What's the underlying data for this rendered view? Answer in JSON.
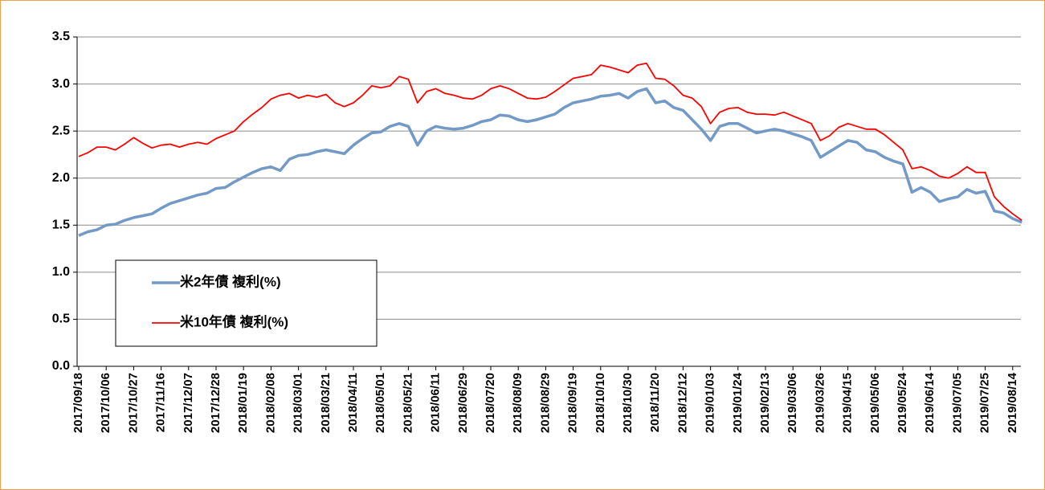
{
  "chart_data": {
    "type": "line",
    "categories": [
      "2017/09/18",
      null,
      null,
      "2017/10/06",
      null,
      null,
      "2017/10/27",
      null,
      null,
      "2017/11/16",
      null,
      null,
      "2017/12/07",
      null,
      null,
      "2017/12/28",
      null,
      null,
      "2018/01/19",
      null,
      null,
      "2018/02/08",
      null,
      null,
      "2018/03/01",
      null,
      null,
      "2018/03/21",
      null,
      null,
      "2018/04/11",
      null,
      null,
      "2018/05/01",
      null,
      null,
      "2018/05/21",
      null,
      null,
      "2018/06/11",
      null,
      null,
      "2018/06/29",
      null,
      null,
      "2018/07/20",
      null,
      null,
      "2018/08/09",
      null,
      null,
      "2018/08/29",
      null,
      null,
      "2018/09/19",
      null,
      null,
      "2018/10/10",
      null,
      null,
      "2018/10/30",
      null,
      null,
      "2018/11/20",
      null,
      null,
      "2018/12/12",
      null,
      null,
      "2019/01/03",
      null,
      null,
      "2019/01/24",
      null,
      null,
      "2019/02/13",
      null,
      null,
      "2019/03/06",
      null,
      null,
      "2019/03/26",
      null,
      null,
      "2019/04/15",
      null,
      null,
      "2019/05/06",
      null,
      null,
      "2019/05/24",
      null,
      null,
      "2019/06/14",
      null,
      null,
      "2019/07/05",
      null,
      null,
      "2019/07/25",
      null,
      null,
      "2019/08/14",
      null
    ],
    "series": [
      {
        "name": "米2年債 複利(%)",
        "color": "#7399c6",
        "width": 3.5,
        "values": [
          1.39,
          1.43,
          1.45,
          1.5,
          1.51,
          1.55,
          1.58,
          1.6,
          1.62,
          1.68,
          1.73,
          1.76,
          1.79,
          1.82,
          1.84,
          1.89,
          1.9,
          1.96,
          2.01,
          2.06,
          2.1,
          2.12,
          2.08,
          2.2,
          2.24,
          2.25,
          2.28,
          2.3,
          2.28,
          2.26,
          2.35,
          2.42,
          2.48,
          2.49,
          2.55,
          2.58,
          2.55,
          2.35,
          2.5,
          2.55,
          2.53,
          2.52,
          2.53,
          2.56,
          2.6,
          2.62,
          2.67,
          2.66,
          2.62,
          2.6,
          2.62,
          2.65,
          2.68,
          2.75,
          2.8,
          2.82,
          2.84,
          2.87,
          2.88,
          2.9,
          2.85,
          2.92,
          2.95,
          2.8,
          2.82,
          2.75,
          2.72,
          2.62,
          2.52,
          2.4,
          2.55,
          2.58,
          2.58,
          2.53,
          2.48,
          2.5,
          2.52,
          2.5,
          2.47,
          2.44,
          2.4,
          2.22,
          2.28,
          2.34,
          2.4,
          2.38,
          2.3,
          2.28,
          2.22,
          2.18,
          2.15,
          1.85,
          1.9,
          1.85,
          1.75,
          1.78,
          1.8,
          1.88,
          1.84,
          1.86,
          1.65,
          1.63,
          1.57,
          1.53
        ]
      },
      {
        "name": "米10年債 複利(%)",
        "color": "#ff0000",
        "width": 1.8,
        "values": [
          2.23,
          2.27,
          2.33,
          2.33,
          2.3,
          2.36,
          2.43,
          2.37,
          2.32,
          2.35,
          2.36,
          2.33,
          2.36,
          2.38,
          2.36,
          2.42,
          2.46,
          2.5,
          2.6,
          2.68,
          2.75,
          2.84,
          2.88,
          2.9,
          2.85,
          2.88,
          2.86,
          2.89,
          2.8,
          2.76,
          2.8,
          2.88,
          2.98,
          2.96,
          2.98,
          3.08,
          3.05,
          2.8,
          2.92,
          2.95,
          2.9,
          2.88,
          2.85,
          2.84,
          2.88,
          2.95,
          2.98,
          2.95,
          2.9,
          2.85,
          2.84,
          2.86,
          2.92,
          2.99,
          3.06,
          3.08,
          3.1,
          3.2,
          3.18,
          3.15,
          3.12,
          3.2,
          3.22,
          3.06,
          3.05,
          2.98,
          2.88,
          2.85,
          2.76,
          2.58,
          2.7,
          2.74,
          2.75,
          2.7,
          2.68,
          2.68,
          2.67,
          2.7,
          2.66,
          2.62,
          2.58,
          2.4,
          2.45,
          2.54,
          2.58,
          2.55,
          2.52,
          2.52,
          2.46,
          2.38,
          2.3,
          2.1,
          2.12,
          2.08,
          2.02,
          2.0,
          2.05,
          2.12,
          2.06,
          2.06,
          1.8,
          1.7,
          1.62,
          1.55
        ]
      }
    ],
    "ylim": [
      0,
      3.5
    ],
    "yticks": [
      {
        "value": 0,
        "label": "0.0"
      },
      0.5,
      {
        "value": 1,
        "label": "1.0"
      },
      1.5,
      {
        "value": 2,
        "label": "2.0"
      },
      2.5,
      {
        "value": 3,
        "label": "3.0"
      },
      3.5
    ],
    "grid": true,
    "legend": "lower-left"
  }
}
